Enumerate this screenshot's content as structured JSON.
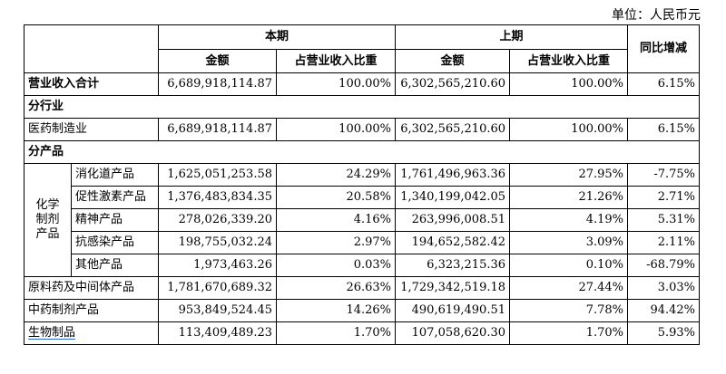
{
  "unit": "单位：人民币元",
  "header": {
    "current_period": "本期",
    "prior_period": "上期",
    "yoy_change": "同比增减",
    "amount": "金额",
    "share": "占营业收入比重"
  },
  "total": {
    "label": "营业收入合计",
    "cur_amount": "6,689,918,114.87",
    "cur_share": "100.00%",
    "prev_amount": "6,302,565,210.60",
    "prev_share": "100.00%",
    "change": "6.15%"
  },
  "section_industry": "分行业",
  "industry": {
    "label": "医药制造业",
    "cur_amount": "6,689,918,114.87",
    "cur_share": "100.00%",
    "prev_amount": "6,302,565,210.60",
    "prev_share": "100.00%",
    "change": "6.15%"
  },
  "section_product": "分产品",
  "chem_group": {
    "line1": "化学",
    "line2": "制剂",
    "line3": "产品"
  },
  "chem_rows": [
    {
      "label": "消化道产品",
      "cur_amount": "1,625,051,253.58",
      "cur_share": "24.29%",
      "prev_amount": "1,761,496,963.36",
      "prev_share": "27.95%",
      "change": "-7.75%"
    },
    {
      "label": "促性激素产品",
      "cur_amount": "1,376,483,834.35",
      "cur_share": "20.58%",
      "prev_amount": "1,340,199,042.05",
      "prev_share": "21.26%",
      "change": "2.71%"
    },
    {
      "label": "精神产品",
      "cur_amount": "278,026,339.20",
      "cur_share": "4.16%",
      "prev_amount": "263,996,008.51",
      "prev_share": "4.19%",
      "change": "5.31%"
    },
    {
      "label": "抗感染产品",
      "cur_amount": "198,755,032.24",
      "cur_share": "2.97%",
      "prev_amount": "194,652,582.42",
      "prev_share": "3.09%",
      "change": "2.11%"
    },
    {
      "label": "其他产品",
      "cur_amount": "1,973,463.26",
      "cur_share": "0.03%",
      "prev_amount": "6,323,215.36",
      "prev_share": "0.10%",
      "change": "-68.79%"
    }
  ],
  "other_rows": [
    {
      "label": "原料药及中间体产品",
      "cur_amount": "1,781,670,689.32",
      "cur_share": "26.63%",
      "prev_amount": "1,729,342,519.18",
      "prev_share": "27.44%",
      "change": "3.03%"
    },
    {
      "label": "中药制剂产品",
      "cur_amount": "953,849,524.45",
      "cur_share": "14.26%",
      "prev_amount": "490,619,490.51",
      "prev_share": "7.78%",
      "change": "94.42%"
    },
    {
      "label": "生物制品",
      "cur_amount": "113,409,489.23",
      "cur_share": "1.70%",
      "prev_amount": "107,058,620.30",
      "prev_share": "1.70%",
      "change": "5.93%"
    }
  ]
}
